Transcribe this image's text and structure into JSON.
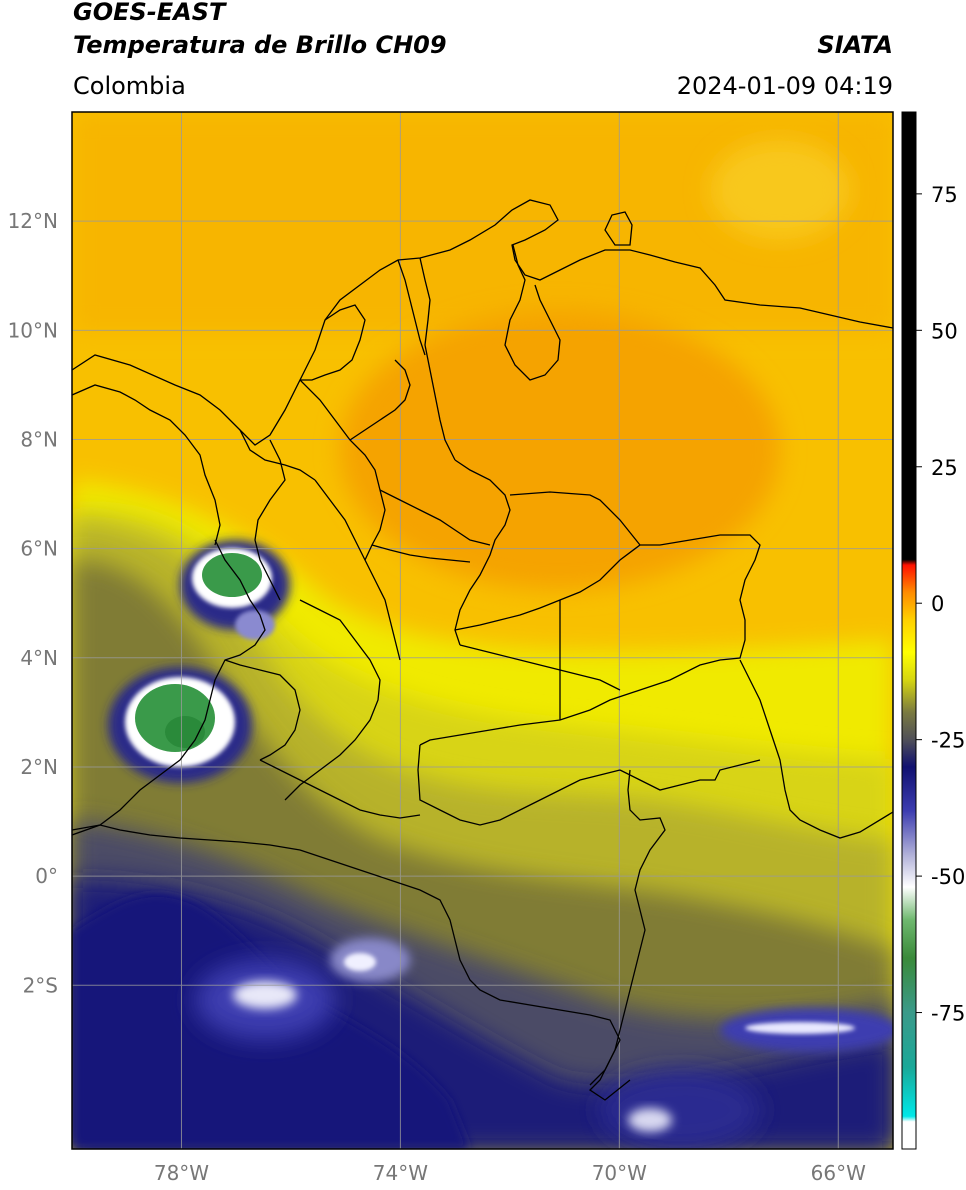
{
  "header": {
    "satellite": "GOES-EAST",
    "product": "Temperatura de Brillo CH09",
    "brand": "SIATA",
    "region": "Colombia",
    "datetime": "2024-01-09 04:19"
  },
  "map": {
    "lon_range": [
      -80,
      -65
    ],
    "lat_range": [
      -5,
      14
    ],
    "lat_ticks": [
      {
        "lat": 12,
        "label": "12°N"
      },
      {
        "lat": 10,
        "label": "10°N"
      },
      {
        "lat": 8,
        "label": "8°N"
      },
      {
        "lat": 6,
        "label": "6°N"
      },
      {
        "lat": 4,
        "label": "4°N"
      },
      {
        "lat": 2,
        "label": "2°N"
      },
      {
        "lat": 0,
        "label": "0°"
      },
      {
        "lat": -2,
        "label": "2°S"
      }
    ],
    "lon_ticks": [
      {
        "lon": -78,
        "label": "78°W"
      },
      {
        "lon": -74,
        "label": "74°W"
      },
      {
        "lon": -70,
        "label": "70°W"
      },
      {
        "lon": -66,
        "label": "66°W"
      }
    ],
    "grid": true,
    "colors": {
      "warm": "#f5a300",
      "warm_light": "#f8c000",
      "yellow": "#f2ee00",
      "olive": "#7e7e2a",
      "navy": "#1c1c78",
      "cold_green": "#3a9a4a",
      "border": "#000000",
      "gridline": "#9a9a9a"
    }
  },
  "colorbar": {
    "range": [
      -100,
      90
    ],
    "ticks": [
      {
        "value": 75,
        "label": "75"
      },
      {
        "value": 50,
        "label": "50"
      },
      {
        "value": 25,
        "label": "25"
      },
      {
        "value": 0,
        "label": "0"
      },
      {
        "value": -25,
        "label": "-25"
      },
      {
        "value": -50,
        "label": "-50"
      },
      {
        "value": -75,
        "label": "-75"
      }
    ],
    "stops": [
      {
        "value": -100,
        "color": "#ffffff"
      },
      {
        "value": -95,
        "color": "#ffffff"
      },
      {
        "value": -94,
        "color": "#00e8e8"
      },
      {
        "value": -85,
        "color": "#1aa898"
      },
      {
        "value": -75,
        "color": "#3a9a8a"
      },
      {
        "value": -65,
        "color": "#3a8a3a"
      },
      {
        "value": -58,
        "color": "#6fb86f"
      },
      {
        "value": -52,
        "color": "#ffffff"
      },
      {
        "value": -46,
        "color": "#b0b0d8"
      },
      {
        "value": -38,
        "color": "#3c3cb0"
      },
      {
        "value": -30,
        "color": "#101070"
      },
      {
        "value": -25,
        "color": "#505058"
      },
      {
        "value": -20,
        "color": "#7a7a40"
      },
      {
        "value": -14,
        "color": "#d6d610"
      },
      {
        "value": -9,
        "color": "#ffff00"
      },
      {
        "value": -3,
        "color": "#ffd000"
      },
      {
        "value": 2,
        "color": "#ff8c00"
      },
      {
        "value": 7,
        "color": "#ff1000"
      },
      {
        "value": 8,
        "color": "#000000"
      },
      {
        "value": 90,
        "color": "#000000"
      }
    ]
  }
}
